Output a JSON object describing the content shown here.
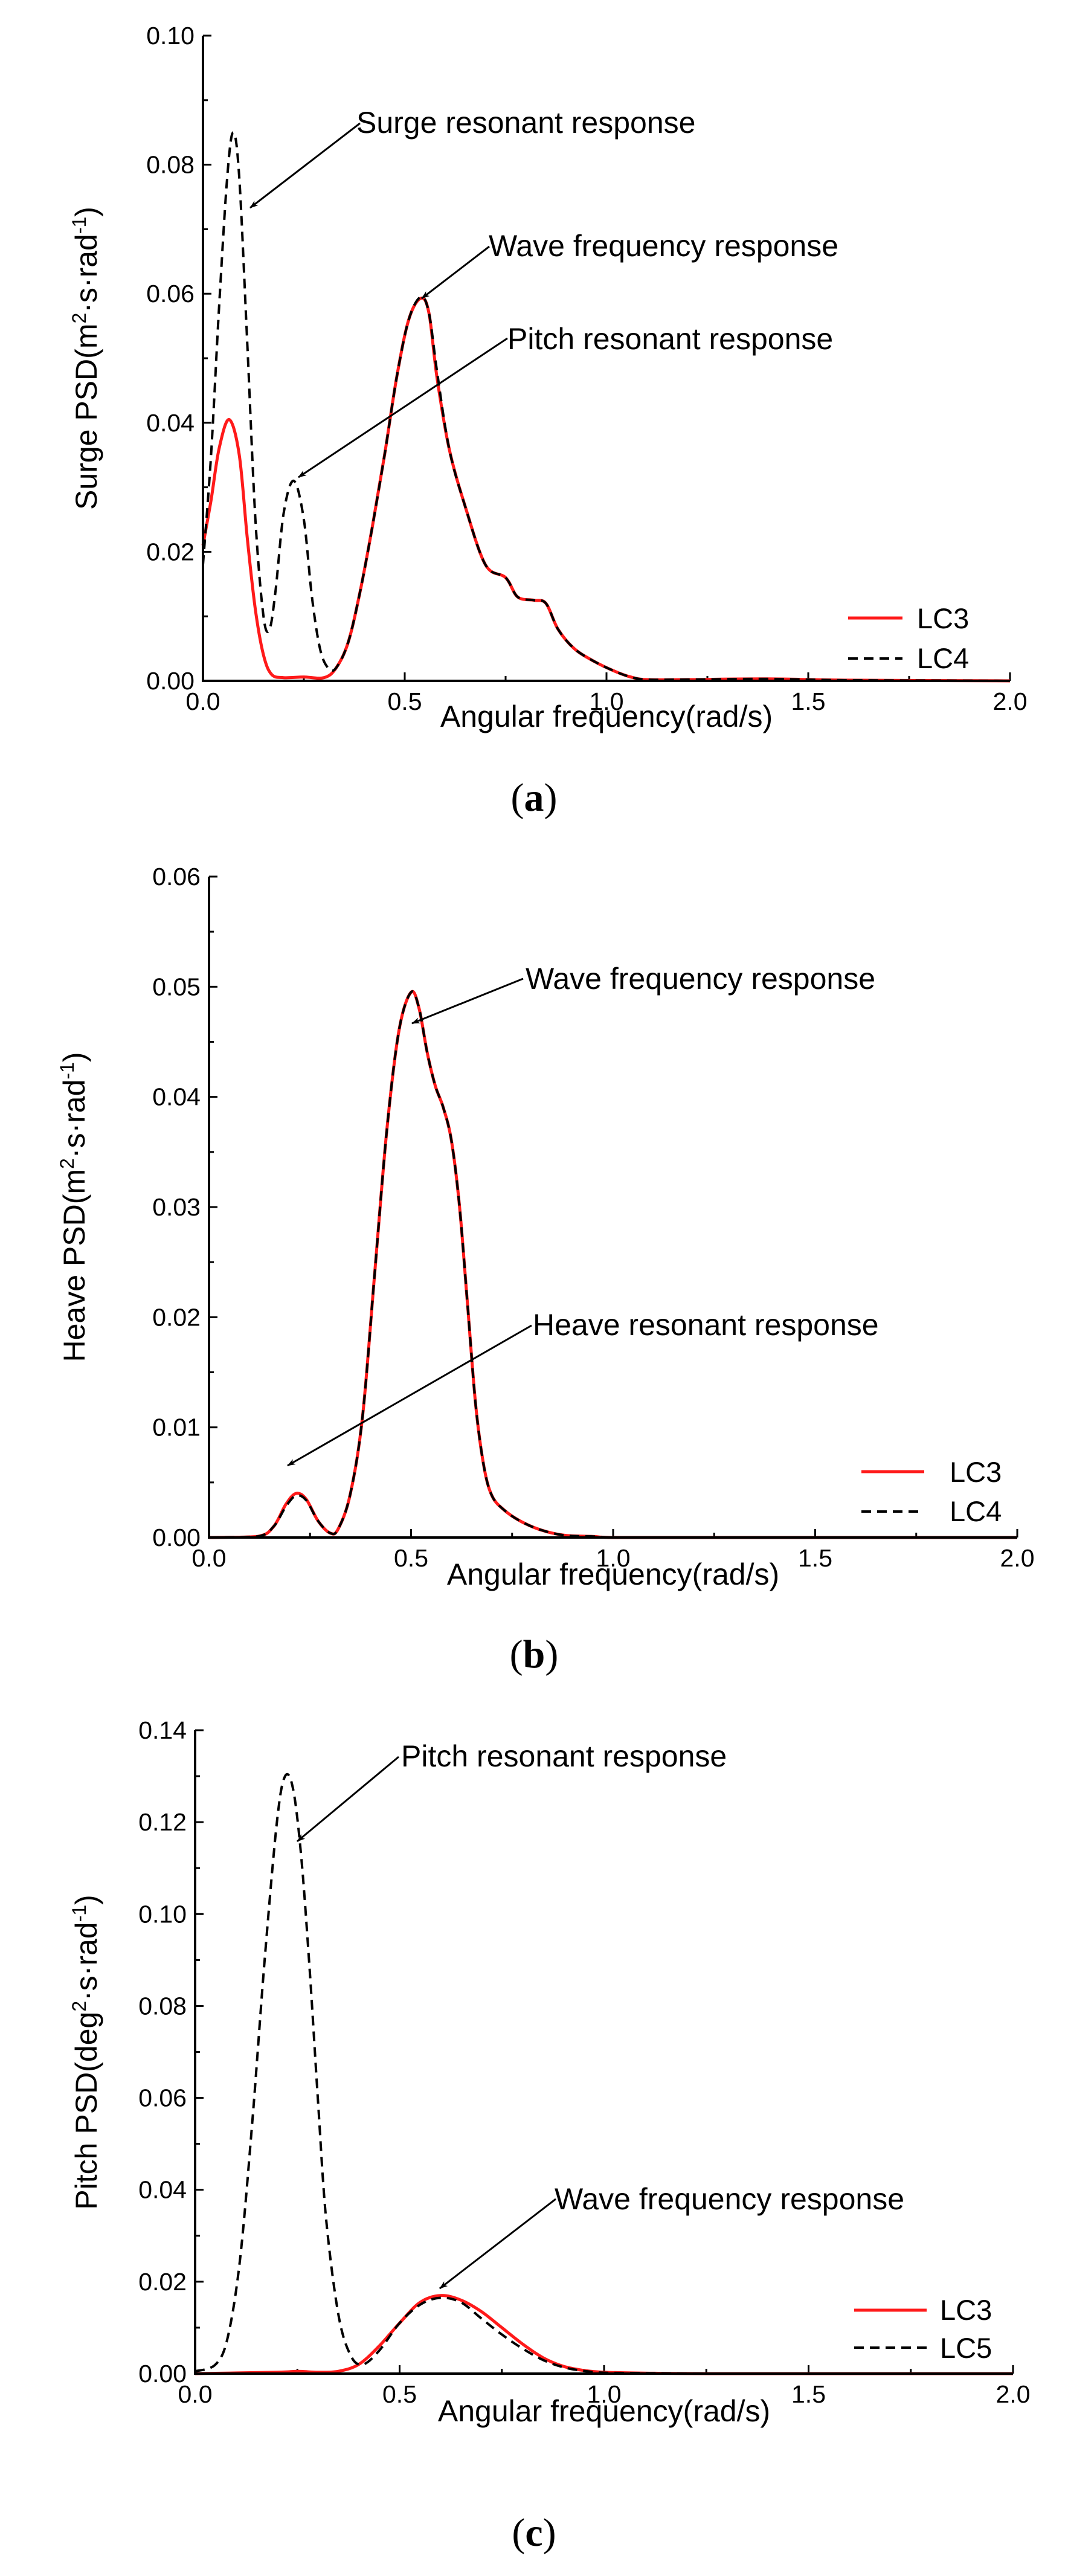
{
  "colors": {
    "lc3": "#ff1a1a",
    "dashed": "#000000",
    "axis": "#000000"
  },
  "chart_data": [
    {
      "type": "line",
      "panel": "a",
      "caption": "a",
      "xlabel": "Angular frequency(rad/s)",
      "ylabel": "Surge PSD(m²·s·rad⁻¹)",
      "ylabel_parts": {
        "main": "Surge PSD(m",
        "sup1": "2",
        "mid": "·s·rad",
        "sup2": "-1",
        "end": ")"
      },
      "xlim": [
        0,
        2
      ],
      "ylim": [
        0,
        0.1
      ],
      "xticks": [
        0,
        0.5,
        1,
        1.5,
        2
      ],
      "xtick_labels": [
        "0.0",
        "0.5",
        "1.0",
        "1.5",
        "2.0"
      ],
      "yticks": [
        0,
        0.02,
        0.04,
        0.06,
        0.08,
        0.1
      ],
      "ytick_labels": [
        "0.00",
        "0.02",
        "0.04",
        "0.06",
        "0.08",
        "0.10"
      ],
      "legend": [
        "LC3",
        "LC4"
      ],
      "series": [
        {
          "name": "LC3",
          "style": "solid",
          "x": [
            0,
            0.02,
            0.04,
            0.065,
            0.09,
            0.11,
            0.13,
            0.15,
            0.17,
            0.2,
            0.25,
            0.3,
            0.33,
            0.36,
            0.39,
            0.42,
            0.45,
            0.48,
            0.51,
            0.54,
            0.56,
            0.58,
            0.61,
            0.65,
            0.7,
            0.75,
            0.78,
            0.82,
            0.85,
            0.88,
            0.92,
            0.97,
            1.02,
            1.06,
            1.1,
            1.2,
            1.4,
            1.6,
            2.0
          ],
          "y": [
            0.021,
            0.028,
            0.036,
            0.0405,
            0.035,
            0.022,
            0.011,
            0.004,
            0.001,
            0.0005,
            0.0006,
            0.0005,
            0.002,
            0.006,
            0.014,
            0.024,
            0.035,
            0.047,
            0.056,
            0.0593,
            0.057,
            0.047,
            0.036,
            0.027,
            0.018,
            0.016,
            0.013,
            0.0125,
            0.012,
            0.008,
            0.005,
            0.003,
            0.0015,
            0.0006,
            0.0002,
            0.0002,
            0.0003,
            0.0001,
            0.0
          ]
        },
        {
          "name": "LC4",
          "style": "dashed",
          "x": [
            0,
            0.02,
            0.04,
            0.06,
            0.075,
            0.09,
            0.11,
            0.13,
            0.15,
            0.165,
            0.18,
            0.2,
            0.225,
            0.25,
            0.27,
            0.29,
            0.31,
            0.33,
            0.36,
            0.39,
            0.42,
            0.45,
            0.48,
            0.51,
            0.54,
            0.56,
            0.58,
            0.61,
            0.65,
            0.7,
            0.75,
            0.78,
            0.82,
            0.85,
            0.88,
            0.92,
            0.97,
            1.02,
            1.06,
            1.1,
            1.2,
            1.4,
            1.6,
            2.0
          ],
          "y": [
            0.018,
            0.035,
            0.058,
            0.078,
            0.085,
            0.078,
            0.052,
            0.025,
            0.01,
            0.008,
            0.014,
            0.026,
            0.031,
            0.025,
            0.013,
            0.005,
            0.002,
            0.002,
            0.006,
            0.014,
            0.024,
            0.035,
            0.047,
            0.056,
            0.0595,
            0.057,
            0.048,
            0.036,
            0.027,
            0.018,
            0.016,
            0.013,
            0.0125,
            0.012,
            0.008,
            0.005,
            0.003,
            0.0015,
            0.0006,
            0.0002,
            0.0002,
            0.0003,
            0.0001,
            0.0
          ]
        }
      ],
      "annotations": [
        "Surge resonant response",
        "Wave frequency response",
        "Pitch resonant response"
      ]
    },
    {
      "type": "line",
      "panel": "b",
      "caption": "b",
      "xlabel": "Angular frequency(rad/s)",
      "ylabel": "Heave PSD(m²·s·rad⁻¹)",
      "ylabel_parts": {
        "main": "Heave PSD(m",
        "sup1": "2",
        "mid": "·s·rad",
        "sup2": "-1",
        "end": ")"
      },
      "xlim": [
        0,
        2
      ],
      "ylim": [
        0,
        0.06
      ],
      "xticks": [
        0,
        0.5,
        1,
        1.5,
        2
      ],
      "xtick_labels": [
        "0.0",
        "0.5",
        "1.0",
        "1.5",
        "2.0"
      ],
      "yticks": [
        0,
        0.01,
        0.02,
        0.03,
        0.04,
        0.05,
        0.06
      ],
      "ytick_labels": [
        "0.00",
        "0.01",
        "0.02",
        "0.03",
        "0.04",
        "0.05",
        "0.06"
      ],
      "legend": [
        "LC3",
        "LC4"
      ],
      "series": [
        {
          "name": "LC3",
          "style": "solid",
          "x": [
            0,
            0.12,
            0.16,
            0.19,
            0.215,
            0.24,
            0.27,
            0.3,
            0.32,
            0.35,
            0.38,
            0.41,
            0.44,
            0.47,
            0.5,
            0.52,
            0.54,
            0.56,
            0.58,
            0.6,
            0.62,
            0.64,
            0.66,
            0.68,
            0.7,
            0.73,
            0.77,
            0.82,
            0.88,
            0.95,
            1.0,
            1.2,
            2.0
          ],
          "y": [
            0,
            0.0001,
            0.001,
            0.003,
            0.004,
            0.0035,
            0.0015,
            0.0004,
            0.0008,
            0.004,
            0.011,
            0.024,
            0.037,
            0.046,
            0.0495,
            0.048,
            0.044,
            0.041,
            0.039,
            0.036,
            0.03,
            0.021,
            0.012,
            0.0065,
            0.0038,
            0.0025,
            0.0015,
            0.0007,
            0.0002,
            0.0001,
            0,
            0,
            0
          ]
        },
        {
          "name": "LC4",
          "style": "dashed",
          "x": [
            0,
            0.12,
            0.16,
            0.19,
            0.215,
            0.24,
            0.27,
            0.3,
            0.32,
            0.35,
            0.38,
            0.41,
            0.44,
            0.47,
            0.5,
            0.52,
            0.54,
            0.56,
            0.58,
            0.6,
            0.62,
            0.64,
            0.66,
            0.68,
            0.7,
            0.73,
            0.77,
            0.82,
            0.88,
            0.95,
            1.0,
            1.2,
            2.0
          ],
          "y": [
            0,
            0.0001,
            0.001,
            0.0028,
            0.0038,
            0.0034,
            0.0015,
            0.0004,
            0.0008,
            0.004,
            0.011,
            0.024,
            0.037,
            0.046,
            0.0495,
            0.048,
            0.044,
            0.041,
            0.039,
            0.036,
            0.03,
            0.021,
            0.012,
            0.0065,
            0.0038,
            0.0025,
            0.0015,
            0.0007,
            0.0002,
            0.0001,
            0,
            0,
            0
          ]
        }
      ],
      "annotations": [
        "Wave frequency response",
        "Heave resonant response"
      ]
    },
    {
      "type": "line",
      "panel": "c",
      "caption": "c",
      "xlabel": "Angular frequency(rad/s)",
      "ylabel": "Pitch PSD(deg²·s·rad⁻¹)",
      "ylabel_parts": {
        "main": "Pitch PSD(deg",
        "sup1": "2",
        "mid": "·s·rad",
        "sup2": "-1",
        "end": ")"
      },
      "xlim": [
        0,
        2
      ],
      "ylim": [
        0,
        0.14
      ],
      "xticks": [
        0,
        0.5,
        1,
        1.5,
        2
      ],
      "xtick_labels": [
        "0.0",
        "0.5",
        "1.0",
        "1.5",
        "2.0"
      ],
      "yticks": [
        0,
        0.02,
        0.04,
        0.06,
        0.08,
        0.1,
        0.12,
        0.14
      ],
      "ytick_labels": [
        "0.00",
        "0.02",
        "0.04",
        "0.06",
        "0.08",
        "0.10",
        "0.12",
        "0.14"
      ],
      "legend": [
        "LC3",
        "LC5"
      ],
      "series": [
        {
          "name": "LC3",
          "style": "solid",
          "x": [
            0,
            0.2,
            0.25,
            0.3,
            0.35,
            0.4,
            0.45,
            0.5,
            0.55,
            0.6,
            0.65,
            0.7,
            0.75,
            0.8,
            0.85,
            0.9,
            0.95,
            1.0,
            1.1,
            1.3,
            2.0
          ],
          "y": [
            0,
            0.0003,
            0.0005,
            0.0003,
            0.0005,
            0.002,
            0.006,
            0.011,
            0.0155,
            0.017,
            0.016,
            0.0135,
            0.01,
            0.0065,
            0.0035,
            0.0016,
            0.0007,
            0.0003,
            0.0001,
            0,
            0
          ]
        },
        {
          "name": "LC5",
          "style": "dashed",
          "x": [
            0,
            0.05,
            0.08,
            0.11,
            0.14,
            0.17,
            0.2,
            0.22,
            0.24,
            0.26,
            0.28,
            0.3,
            0.32,
            0.35,
            0.38,
            0.41,
            0.45,
            0.5,
            0.55,
            0.6,
            0.65,
            0.7,
            0.75,
            0.8,
            0.85,
            0.9,
            0.95,
            1.0,
            1.1,
            1.3,
            2.0
          ],
          "y": [
            0.0005,
            0.002,
            0.008,
            0.025,
            0.055,
            0.09,
            0.12,
            0.13,
            0.127,
            0.112,
            0.088,
            0.06,
            0.034,
            0.013,
            0.004,
            0.002,
            0.005,
            0.011,
            0.015,
            0.0165,
            0.0155,
            0.012,
            0.0085,
            0.0055,
            0.003,
            0.0014,
            0.0006,
            0.0002,
            0.0001,
            0,
            0
          ]
        }
      ],
      "annotations": [
        "Pitch resonant response",
        "Wave frequency response"
      ]
    }
  ]
}
